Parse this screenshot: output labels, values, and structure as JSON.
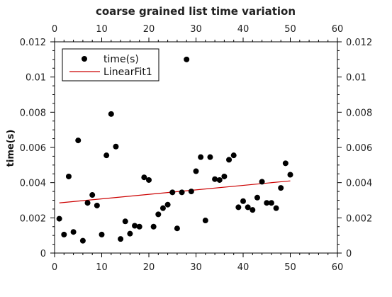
{
  "chart_data": {
    "type": "scatter",
    "title": "coarse grained list time variation",
    "xlabel": "",
    "ylabel": "time(s)",
    "xlim": [
      0,
      60
    ],
    "ylim": [
      0,
      0.012
    ],
    "x_ticks": [
      0,
      10,
      20,
      30,
      40,
      50,
      60
    ],
    "y_ticks": [
      0,
      0.002,
      0.004,
      0.006,
      0.008,
      0.01,
      0.012
    ],
    "x_tick_labels": [
      "0",
      "10",
      "20",
      "30",
      "40",
      "50",
      "60"
    ],
    "y_tick_labels": [
      "0",
      "0.002",
      "0.004",
      "0.006",
      "0.008",
      "0.01",
      "0.012"
    ],
    "grid": false,
    "mirror_axes": true,
    "legend": {
      "placement": "top-left",
      "entries": [
        {
          "label": "time(s)",
          "kind": "marker",
          "color": "#000000"
        },
        {
          "label": "LinearFit1",
          "kind": "line",
          "color": "#cc0000"
        }
      ]
    },
    "series": [
      {
        "name": "time(s)",
        "kind": "scatter",
        "color": "#000000",
        "x": [
          1,
          2,
          3,
          4,
          5,
          6,
          7,
          8,
          9,
          10,
          11,
          12,
          13,
          14,
          15,
          16,
          17,
          18,
          19,
          20,
          21,
          22,
          23,
          24,
          25,
          26,
          27,
          28,
          29,
          30,
          31,
          32,
          33,
          34,
          35,
          36,
          37,
          38,
          39,
          40,
          41,
          42,
          43,
          44,
          45,
          46,
          47,
          48,
          49,
          50
        ],
        "y": [
          0.00195,
          0.00105,
          0.00435,
          0.0012,
          0.0064,
          0.0007,
          0.00285,
          0.0033,
          0.0027,
          0.00105,
          0.00555,
          0.0079,
          0.00605,
          0.0008,
          0.0018,
          0.0011,
          0.00155,
          0.0015,
          0.0043,
          0.00415,
          0.0015,
          0.0022,
          0.00255,
          0.00275,
          0.00345,
          0.0014,
          0.00345,
          0.011,
          0.0035,
          0.00465,
          0.00545,
          0.00185,
          0.00545,
          0.0042,
          0.00415,
          0.00435,
          0.0053,
          0.00555,
          0.0026,
          0.00295,
          0.0026,
          0.00245,
          0.00315,
          0.00405,
          0.00285,
          0.00285,
          0.00255,
          0.0037,
          0.0051,
          0.00445
        ]
      },
      {
        "name": "LinearFit1",
        "kind": "line",
        "color": "#cc0000",
        "x": [
          1,
          50
        ],
        "y": [
          0.00285,
          0.0041
        ]
      }
    ]
  }
}
